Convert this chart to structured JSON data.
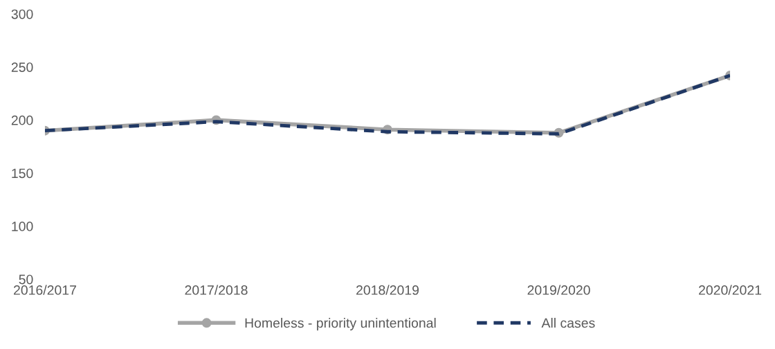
{
  "chart_data": {
    "type": "line",
    "categories": [
      "2016/2017",
      "2017/2018",
      "2018/2019",
      "2019/2020",
      "2020/2021"
    ],
    "series": [
      {
        "name": "Homeless - priority unintentional",
        "color": "#a5a5a5",
        "values": [
          190,
          200,
          191,
          188,
          242
        ],
        "marker": "circle",
        "line_style": "solid"
      },
      {
        "name": "All cases",
        "color": "#203864",
        "values": [
          190,
          198.5,
          189,
          187,
          242
        ],
        "marker": "none",
        "line_style": "dashed"
      }
    ],
    "ylim": [
      50,
      300
    ],
    "yticks": [
      50,
      100,
      150,
      200,
      250,
      300
    ],
    "grid": false,
    "legend": "bottom"
  }
}
